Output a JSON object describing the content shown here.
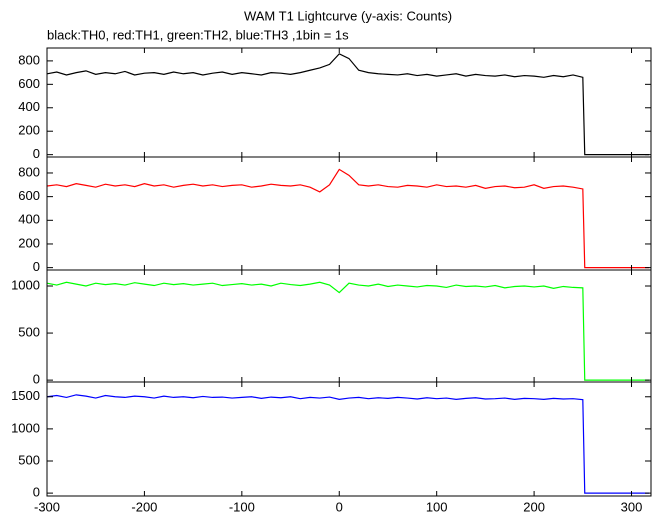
{
  "chart_data": [
    {
      "type": "line",
      "title": "WAM T1 Lightcurve (y-axis: Counts)",
      "subtitle": "black:TH0, red:TH1, green:TH2, blue:TH3 ,1bin = 1s",
      "color": "#000000",
      "x": [
        -300,
        -290,
        -280,
        -270,
        -260,
        -250,
        -240,
        -230,
        -220,
        -210,
        -200,
        -190,
        -180,
        -170,
        -160,
        -150,
        -140,
        -130,
        -120,
        -110,
        -100,
        -90,
        -80,
        -70,
        -60,
        -50,
        -40,
        -30,
        -20,
        -10,
        0,
        10,
        20,
        30,
        40,
        50,
        60,
        70,
        80,
        90,
        100,
        110,
        120,
        130,
        140,
        150,
        160,
        170,
        180,
        190,
        200,
        210,
        220,
        230,
        240,
        250,
        252,
        318
      ],
      "values": [
        690,
        705,
        680,
        700,
        715,
        685,
        700,
        690,
        710,
        680,
        695,
        700,
        685,
        705,
        690,
        700,
        680,
        695,
        705,
        685,
        700,
        690,
        680,
        700,
        695,
        685,
        700,
        720,
        740,
        770,
        860,
        820,
        720,
        700,
        690,
        685,
        680,
        690,
        675,
        685,
        670,
        680,
        690,
        670,
        685,
        675,
        670,
        680,
        665,
        675,
        670,
        660,
        675,
        665,
        680,
        660,
        0,
        0
      ],
      "xlim": [
        -300,
        320
      ],
      "ylim": [
        -20,
        910
      ],
      "yticks": [
        0,
        200,
        400,
        600,
        800
      ]
    },
    {
      "type": "line",
      "color": "#ff0000",
      "x": [
        -300,
        -290,
        -280,
        -270,
        -260,
        -250,
        -240,
        -230,
        -220,
        -210,
        -200,
        -190,
        -180,
        -170,
        -160,
        -150,
        -140,
        -130,
        -120,
        -110,
        -100,
        -90,
        -80,
        -70,
        -60,
        -50,
        -40,
        -30,
        -20,
        -10,
        0,
        10,
        20,
        30,
        40,
        50,
        60,
        70,
        80,
        90,
        100,
        110,
        120,
        130,
        140,
        150,
        160,
        170,
        180,
        190,
        200,
        210,
        220,
        230,
        240,
        250,
        252,
        318
      ],
      "values": [
        690,
        700,
        685,
        710,
        695,
        680,
        705,
        690,
        700,
        685,
        710,
        690,
        700,
        680,
        695,
        705,
        690,
        700,
        685,
        695,
        700,
        680,
        690,
        705,
        695,
        690,
        700,
        680,
        640,
        700,
        830,
        780,
        700,
        690,
        700,
        685,
        680,
        695,
        690,
        680,
        700,
        685,
        690,
        680,
        695,
        670,
        685,
        690,
        675,
        680,
        700,
        670,
        685,
        690,
        680,
        665,
        0,
        0
      ],
      "xlim": [
        -300,
        320
      ],
      "ylim": [
        -20,
        935
      ],
      "yticks": [
        0,
        200,
        400,
        600,
        800
      ]
    },
    {
      "type": "line",
      "color": "#00ff00",
      "x": [
        -300,
        -290,
        -280,
        -270,
        -260,
        -250,
        -240,
        -230,
        -220,
        -210,
        -200,
        -190,
        -180,
        -170,
        -160,
        -150,
        -140,
        -130,
        -120,
        -110,
        -100,
        -90,
        -80,
        -70,
        -60,
        -50,
        -40,
        -30,
        -20,
        -10,
        0,
        10,
        20,
        30,
        40,
        50,
        60,
        70,
        80,
        90,
        100,
        110,
        120,
        130,
        140,
        150,
        160,
        170,
        180,
        190,
        200,
        210,
        220,
        230,
        240,
        250,
        252,
        318
      ],
      "values": [
        1030,
        1010,
        1040,
        1020,
        1000,
        1030,
        1015,
        1025,
        1010,
        1035,
        1020,
        1005,
        1030,
        1015,
        1025,
        1010,
        1020,
        1030,
        1005,
        1015,
        1025,
        1010,
        1020,
        1000,
        1030,
        1015,
        1005,
        1020,
        1040,
        1010,
        930,
        1030,
        1010,
        1000,
        1020,
        995,
        1010,
        1000,
        990,
        1005,
        1000,
        985,
        1010,
        995,
        1000,
        990,
        1005,
        980,
        995,
        1000,
        990,
        1000,
        975,
        995,
        985,
        980,
        0,
        0
      ],
      "xlim": [
        -300,
        320
      ],
      "ylim": [
        -20,
        1170
      ],
      "yticks": [
        0,
        500,
        1000
      ]
    },
    {
      "type": "line",
      "color": "#0000ff",
      "x": [
        -300,
        -290,
        -280,
        -270,
        -260,
        -250,
        -240,
        -230,
        -220,
        -210,
        -200,
        -190,
        -180,
        -170,
        -160,
        -150,
        -140,
        -130,
        -120,
        -110,
        -100,
        -90,
        -80,
        -70,
        -60,
        -50,
        -40,
        -30,
        -20,
        -10,
        0,
        10,
        20,
        30,
        40,
        50,
        60,
        70,
        80,
        90,
        100,
        110,
        120,
        130,
        140,
        150,
        160,
        170,
        180,
        190,
        200,
        210,
        220,
        230,
        240,
        250,
        252,
        318
      ],
      "values": [
        1500,
        1520,
        1490,
        1530,
        1510,
        1480,
        1520,
        1500,
        1490,
        1510,
        1500,
        1480,
        1510,
        1490,
        1500,
        1485,
        1505,
        1490,
        1495,
        1480,
        1490,
        1500,
        1475,
        1495,
        1485,
        1500,
        1470,
        1490,
        1480,
        1495,
        1460,
        1480,
        1490,
        1470,
        1485,
        1475,
        1490,
        1480,
        1465,
        1485,
        1470,
        1480,
        1460,
        1475,
        1485,
        1465,
        1470,
        1480,
        1460,
        1475,
        1470,
        1460,
        1475,
        1465,
        1470,
        1455,
        0,
        0
      ],
      "xlim": [
        -300,
        320
      ],
      "ylim": [
        -45,
        1730
      ],
      "yticks": [
        0,
        500,
        1000,
        1500
      ],
      "xticks": [
        -300,
        -200,
        -100,
        0,
        100,
        200,
        300
      ]
    }
  ]
}
